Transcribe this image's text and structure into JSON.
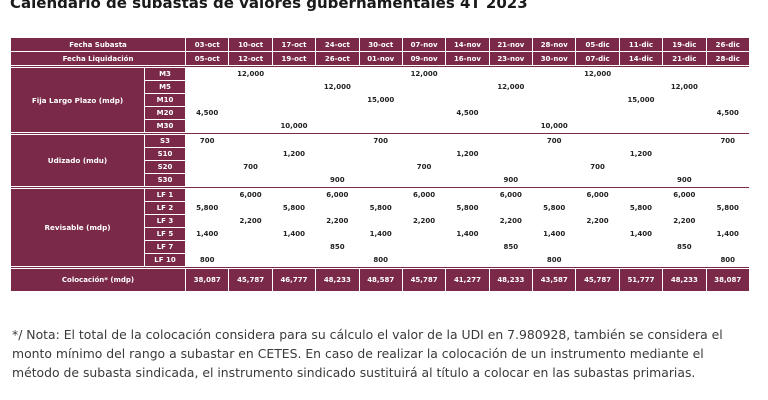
{
  "title": "Calendario de subastas de valores gubernamentales 4T 2023",
  "header": {
    "auction_label": "Fecha Subasta",
    "settlement_label": "Fecha Liquidación",
    "auction_dates": [
      "03-oct",
      "10-oct",
      "17-oct",
      "24-oct",
      "30-oct",
      "07-nov",
      "14-nov",
      "21-nov",
      "28-nov",
      "05-dic",
      "11-dic",
      "19-dic",
      "26-dic"
    ],
    "settlement_dates": [
      "05-oct",
      "12-oct",
      "19-oct",
      "26-oct",
      "01-nov",
      "09-nov",
      "16-nov",
      "23-nov",
      "30-nov",
      "07-dic",
      "14-dic",
      "21-dic",
      "28-dic"
    ]
  },
  "groups": [
    {
      "label": "Fija Largo Plazo (mdp)",
      "rows": [
        {
          "code": "M3",
          "values": [
            "",
            "12,000",
            "",
            "",
            "",
            "12,000",
            "",
            "",
            "",
            "12,000",
            "",
            "",
            ""
          ]
        },
        {
          "code": "M5",
          "values": [
            "",
            "",
            "",
            "12,000",
            "",
            "",
            "",
            "12,000",
            "",
            "",
            "",
            "12,000",
            ""
          ]
        },
        {
          "code": "M10",
          "values": [
            "",
            "",
            "",
            "",
            "15,000",
            "",
            "",
            "",
            "",
            "",
            "15,000",
            "",
            ""
          ]
        },
        {
          "code": "M20",
          "values": [
            "4,500",
            "",
            "",
            "",
            "",
            "",
            "4,500",
            "",
            "",
            "",
            "",
            "",
            "4,500"
          ]
        },
        {
          "code": "M30",
          "values": [
            "",
            "",
            "10,000",
            "",
            "",
            "",
            "",
            "",
            "10,000",
            "",
            "",
            "",
            ""
          ]
        }
      ]
    },
    {
      "label": "Udizado (mdu)",
      "rows": [
        {
          "code": "S3",
          "values": [
            "700",
            "",
            "",
            "",
            "700",
            "",
            "",
            "",
            "700",
            "",
            "",
            "",
            "700"
          ]
        },
        {
          "code": "S10",
          "values": [
            "",
            "",
            "1,200",
            "",
            "",
            "",
            "1,200",
            "",
            "",
            "",
            "1,200",
            "",
            ""
          ]
        },
        {
          "code": "S20",
          "values": [
            "",
            "700",
            "",
            "",
            "",
            "700",
            "",
            "",
            "",
            "700",
            "",
            "",
            ""
          ]
        },
        {
          "code": "S30",
          "values": [
            "",
            "",
            "",
            "900",
            "",
            "",
            "",
            "900",
            "",
            "",
            "",
            "900",
            ""
          ]
        }
      ]
    },
    {
      "label": "Revisable (mdp)",
      "rows": [
        {
          "code": "LF 1",
          "values": [
            "",
            "6,000",
            "",
            "6,000",
            "",
            "6,000",
            "",
            "6,000",
            "",
            "6,000",
            "",
            "6,000",
            ""
          ]
        },
        {
          "code": "LF 2",
          "values": [
            "5,800",
            "",
            "5,800",
            "",
            "5,800",
            "",
            "5,800",
            "",
            "5,800",
            "",
            "5,800",
            "",
            "5,800"
          ]
        },
        {
          "code": "LF 3",
          "values": [
            "",
            "2,200",
            "",
            "2,200",
            "",
            "2,200",
            "",
            "2,200",
            "",
            "2,200",
            "",
            "2,200",
            ""
          ]
        },
        {
          "code": "LF 5",
          "values": [
            "1,400",
            "",
            "1,400",
            "",
            "1,400",
            "",
            "1,400",
            "",
            "1,400",
            "",
            "1,400",
            "",
            "1,400"
          ]
        },
        {
          "code": "LF 7",
          "values": [
            "",
            "",
            "",
            "850",
            "",
            "",
            "",
            "850",
            "",
            "",
            "",
            "850",
            ""
          ]
        },
        {
          "code": "LF 10",
          "values": [
            "800",
            "",
            "",
            "",
            "800",
            "",
            "",
            "",
            "800",
            "",
            "",
            "",
            "800"
          ]
        }
      ]
    }
  ],
  "total": {
    "label": "Colocación* (mdp)",
    "values": [
      "38,087",
      "45,787",
      "46,777",
      "48,233",
      "48,587",
      "45,787",
      "41,277",
      "48,233",
      "43,587",
      "45,787",
      "51,777",
      "48,233",
      "38,087"
    ]
  },
  "note": "*/ Nota: El total de la colocación considera para su cálculo el valor de la UDI en 7.980928, también se considera el monto mínimo del rango a subastar en CETES. En caso de realizar la colocación de un instrumento mediante el método de subasta sindicada, el instrumento sindicado sustituirá al título a colocar en las subastas primarias.",
  "colors": {
    "header_bg": "#7a2a48",
    "header_text": "#ffffff",
    "cell_bg": "#ffffff",
    "cell_text": "#222222"
  }
}
